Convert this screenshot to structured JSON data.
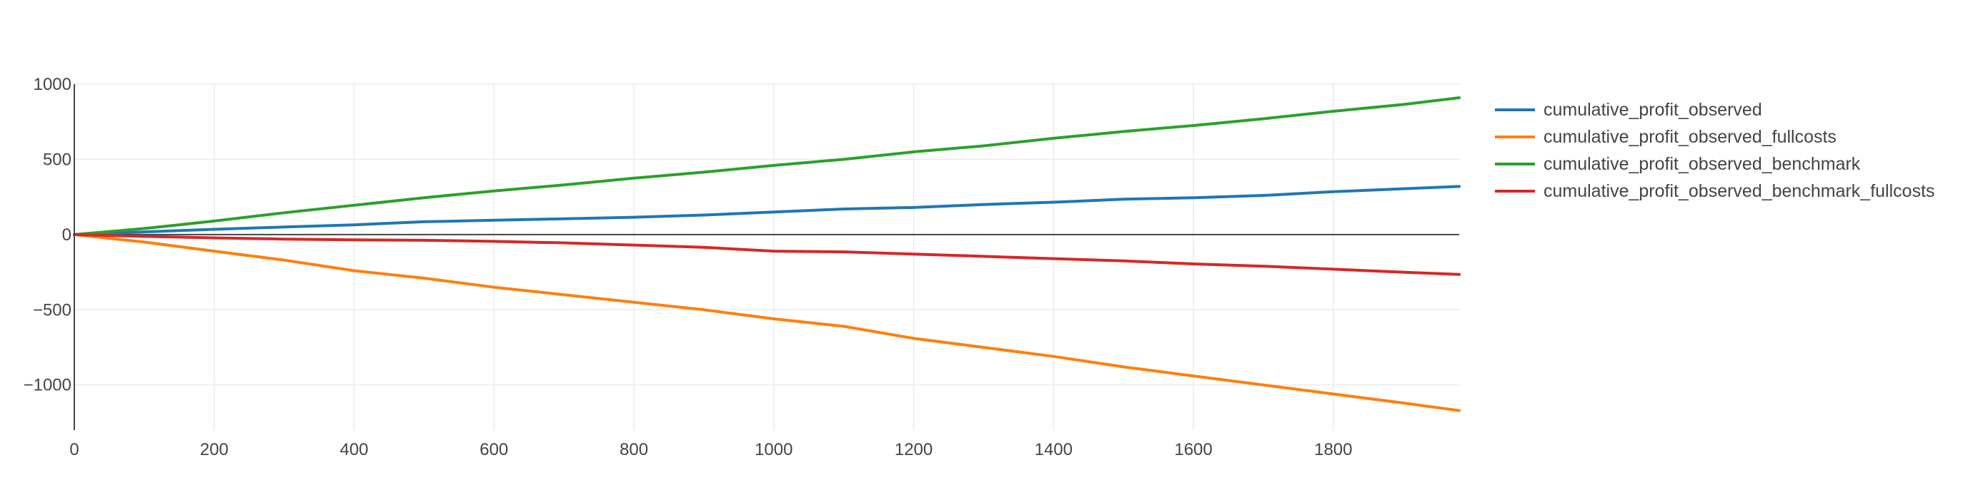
{
  "chart_data": {
    "type": "line",
    "title": "",
    "xlabel": "",
    "ylabel": "",
    "xlim": [
      0,
      1980
    ],
    "ylim": [
      -1300,
      1000
    ],
    "x_ticks": [
      0,
      200,
      400,
      600,
      800,
      1000,
      1200,
      1400,
      1600,
      1800
    ],
    "y_ticks": [
      1000,
      500,
      0,
      -500,
      -1000
    ],
    "grid": true,
    "legend_position": "right",
    "x": [
      0,
      100,
      200,
      300,
      400,
      500,
      600,
      700,
      800,
      900,
      1000,
      1100,
      1200,
      1300,
      1400,
      1500,
      1600,
      1700,
      1800,
      1900,
      1980
    ],
    "series": [
      {
        "name": "cumulative_profit_observed",
        "color": "#1f77b4",
        "values": [
          0,
          18,
          35,
          50,
          65,
          85,
          95,
          105,
          115,
          130,
          150,
          170,
          180,
          200,
          215,
          235,
          245,
          260,
          285,
          305,
          320
        ]
      },
      {
        "name": "cumulative_profit_observed_fullcosts",
        "color": "#ff7f0e",
        "values": [
          0,
          -50,
          -110,
          -170,
          -240,
          -290,
          -350,
          -400,
          -450,
          -500,
          -560,
          -610,
          -690,
          -750,
          -810,
          -880,
          -940,
          -1000,
          -1060,
          -1120,
          -1170
        ]
      },
      {
        "name": "cumulative_profit_observed_benchmark",
        "color": "#2ca02c",
        "values": [
          0,
          40,
          90,
          145,
          195,
          245,
          290,
          330,
          375,
          415,
          460,
          500,
          550,
          590,
          640,
          685,
          725,
          770,
          820,
          865,
          910
        ]
      },
      {
        "name": "cumulative_profit_observed_benchmark_fullcosts",
        "color": "#d62728",
        "values": [
          0,
          -12,
          -22,
          -30,
          -35,
          -38,
          -45,
          -55,
          -70,
          -85,
          -110,
          -115,
          -130,
          -145,
          -160,
          -175,
          -195,
          -210,
          -230,
          -250,
          -265
        ]
      }
    ]
  }
}
